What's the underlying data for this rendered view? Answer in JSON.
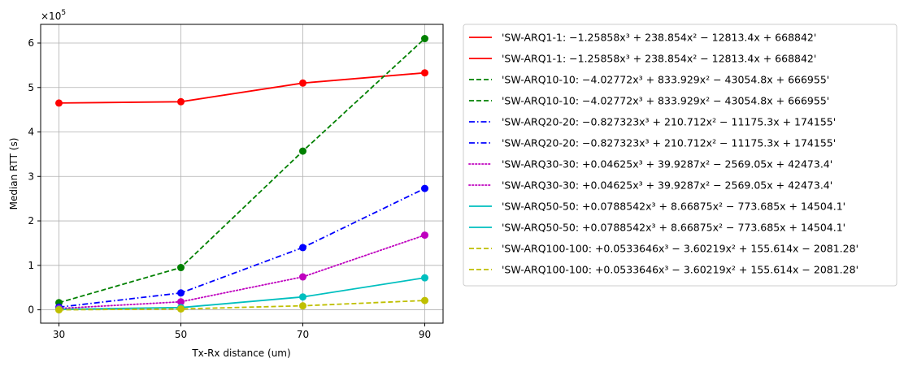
{
  "chart_data": {
    "type": "line",
    "title": "",
    "xlabel": "Tx-Rx distance (um)",
    "ylabel": "Median RTT (s)",
    "offset_label": "×10",
    "offset_exponent": "5",
    "x": [
      30,
      50,
      70,
      90
    ],
    "x_ticks": [
      "30",
      "50",
      "70",
      "90"
    ],
    "y_ticks": [
      "0",
      "1",
      "2",
      "3",
      "4",
      "5",
      "6"
    ],
    "xlim": [
      27,
      93
    ],
    "ylim": [
      -0.3,
      6.42
    ],
    "grid": true,
    "legend_placement": "outside-right",
    "series": [
      {
        "values": [
          4.65,
          4.68,
          5.1,
          5.33
        ],
        "color": "#ff0000",
        "style": "solid"
      },
      {
        "values": [
          0.16,
          0.95,
          3.57,
          6.1
        ],
        "color": "#008000",
        "style": "dashed"
      },
      {
        "values": [
          0.06,
          0.38,
          1.4,
          2.73
        ],
        "color": "#0000ff",
        "style": "dashdot"
      },
      {
        "values": [
          0.03,
          0.18,
          0.74,
          1.68
        ],
        "color": "#bf00bf",
        "style": "dotted"
      },
      {
        "values": [
          0.01,
          0.05,
          0.29,
          0.72
        ],
        "color": "#00bfbf",
        "style": "solid"
      },
      {
        "values": [
          0.0,
          0.02,
          0.09,
          0.21
        ],
        "color": "#bfbf00",
        "style": "dashed"
      }
    ],
    "legend": [
      {
        "text": "'SW-ARQ1-1: −1.25858x³ + 238.854x² − 12813.4x + 668842'",
        "color": "#ff0000",
        "style": "solid"
      },
      {
        "text": "'SW-ARQ1-1: −1.25858x³ + 238.854x² − 12813.4x + 668842'",
        "color": "#ff0000",
        "style": "solid"
      },
      {
        "text": "'SW-ARQ10-10: −4.02772x³ + 833.929x² − 43054.8x + 666955'",
        "color": "#008000",
        "style": "dashed"
      },
      {
        "text": "'SW-ARQ10-10: −4.02772x³ + 833.929x² − 43054.8x + 666955'",
        "color": "#008000",
        "style": "dashed"
      },
      {
        "text": "'SW-ARQ20-20: −0.827323x³ + 210.712x² − 11175.3x + 174155'",
        "color": "#0000ff",
        "style": "dashdot"
      },
      {
        "text": "'SW-ARQ20-20: −0.827323x³ + 210.712x² − 11175.3x + 174155'",
        "color": "#0000ff",
        "style": "dashdot"
      },
      {
        "text": "'SW-ARQ30-30: +0.04625x³ + 39.9287x² − 2569.05x + 42473.4'",
        "color": "#bf00bf",
        "style": "dotted"
      },
      {
        "text": "'SW-ARQ30-30: +0.04625x³ + 39.9287x² − 2569.05x + 42473.4'",
        "color": "#bf00bf",
        "style": "dotted"
      },
      {
        "text": "'SW-ARQ50-50: +0.0788542x³ + 8.66875x² − 773.685x + 14504.1'",
        "color": "#00bfbf",
        "style": "solid"
      },
      {
        "text": "'SW-ARQ50-50: +0.0788542x³ + 8.66875x² − 773.685x + 14504.1'",
        "color": "#00bfbf",
        "style": "solid"
      },
      {
        "text": "'SW-ARQ100-100: +0.0533646x³ − 3.60219x² + 155.614x − 2081.28'",
        "color": "#bfbf00",
        "style": "dashed"
      },
      {
        "text": "'SW-ARQ100-100: +0.0533646x³ − 3.60219x² + 155.614x − 2081.28'",
        "color": "#bfbf00",
        "style": "dashed"
      }
    ]
  }
}
